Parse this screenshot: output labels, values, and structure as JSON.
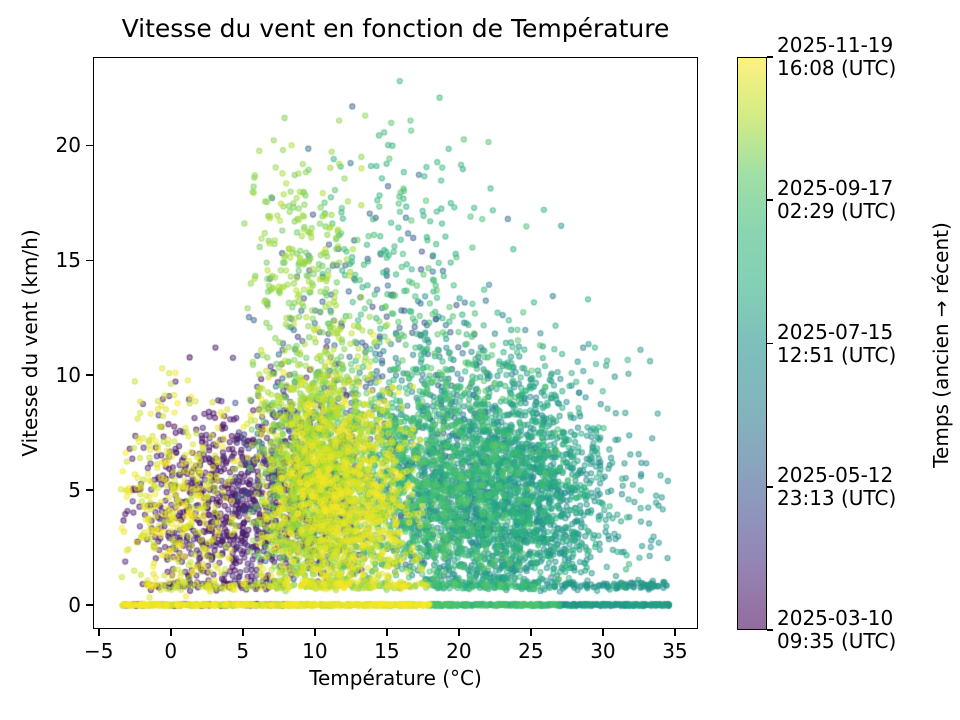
{
  "chart_data": {
    "type": "scatter",
    "title": "Vitesse du vent en fonction de Température",
    "xlabel": "Température (°C)",
    "ylabel": "Vitesse du vent (km/h)",
    "xlim": [
      -5.4,
      36.6
    ],
    "ylim": [
      -1.05,
      23.85
    ],
    "grid": false,
    "xticks": {
      "values": [
        -5,
        0,
        5,
        10,
        15,
        20,
        25,
        30,
        35
      ],
      "labels": [
        "−5",
        "0",
        "5",
        "10",
        "15",
        "20",
        "25",
        "30",
        "35"
      ]
    },
    "yticks": {
      "values": [
        0,
        5,
        10,
        15,
        20
      ],
      "labels": [
        "0",
        "5",
        "10",
        "15",
        "20"
      ]
    },
    "colormap": "viridis",
    "marker": {
      "radius_px": 2.55,
      "fill_alpha": 0.45,
      "edge_alpha": 0.6,
      "edge_width": 1.1
    },
    "colorbar": {
      "label": "Temps (ancien → récent)",
      "position": "right",
      "ticks": [
        {
          "frac": 1.0,
          "lines": [
            "2025-11-19",
            "16:08 (UTC)"
          ]
        },
        {
          "frac": 0.75,
          "lines": [
            "2025-09-17",
            "02:29 (UTC)"
          ]
        },
        {
          "frac": 0.5,
          "lines": [
            "2025-07-15",
            "12:51 (UTC)"
          ]
        },
        {
          "frac": 0.25,
          "lines": [
            "2025-05-12",
            "23:13 (UTC)"
          ]
        },
        {
          "frac": 0.0,
          "lines": [
            "2025-03-10",
            "09:35 (UTC)"
          ]
        }
      ]
    },
    "viridis_anchors": [
      [
        0.0,
        "#440154"
      ],
      [
        0.1,
        "#482878"
      ],
      [
        0.2,
        "#3e4989"
      ],
      [
        0.3,
        "#31688e"
      ],
      [
        0.4,
        "#26828e"
      ],
      [
        0.5,
        "#21918c"
      ],
      [
        0.6,
        "#28ae80"
      ],
      [
        0.7,
        "#35b779"
      ],
      [
        0.8,
        "#5ec962"
      ],
      [
        0.9,
        "#b5de2b"
      ],
      [
        1.0,
        "#fde725"
      ]
    ],
    "points_spec": {
      "seed": 11,
      "temp_range_c": [
        -3.5,
        34.6
      ],
      "wind_range_kmh": [
        0,
        23.2
      ],
      "clusters": [
        {
          "n": 650,
          "t": [
            3.2,
            2.9,
            -3.5,
            9
          ],
          "w": [
            4.2,
            2.1,
            0.6,
            11.5
          ],
          "c": [
            0.0,
            0.1
          ]
        },
        {
          "n": 520,
          "t": [
            9.2,
            2.4,
            4,
            14
          ],
          "w": [
            4.5,
            2.6,
            0.8,
            16
          ],
          "c": [
            0.04,
            0.17
          ]
        },
        {
          "n": 330,
          "t": [
            13,
            4.2,
            4,
            22
          ],
          "w": [
            7.5,
            4.6,
            1,
            21.5
          ],
          "c": [
            0.2,
            0.32
          ]
        },
        {
          "n": 750,
          "t": [
            20,
            3.3,
            13,
            29
          ],
          "w": [
            5,
            2.9,
            0.7,
            14
          ],
          "c": [
            0.33,
            0.46
          ]
        },
        {
          "n": 950,
          "t": [
            25,
            3.6,
            17,
            34.6
          ],
          "w": [
            4.4,
            2.7,
            0.6,
            15
          ],
          "c": [
            0.44,
            0.56
          ]
        },
        {
          "n": 950,
          "t": [
            23,
            3.6,
            15,
            32
          ],
          "w": [
            5,
            3,
            0.7,
            16
          ],
          "c": [
            0.55,
            0.68
          ]
        },
        {
          "n": 1000,
          "t": [
            18,
            3.6,
            10,
            28
          ],
          "w": [
            5.5,
            3.3,
            0.7,
            18
          ],
          "c": [
            0.66,
            0.8
          ]
        },
        {
          "n": 140,
          "t": [
            16,
            3.6,
            9,
            25
          ],
          "w": [
            15.5,
            2.8,
            12,
            22.8
          ],
          "c": [
            0.6,
            0.78
          ]
        },
        {
          "n": 1350,
          "t": [
            10,
            2.3,
            5.5,
            16
          ],
          "w": [
            5.5,
            3.3,
            0.8,
            17
          ],
          "c": [
            0.8,
            0.92
          ]
        },
        {
          "n": 190,
          "t": [
            8.8,
            2.1,
            5,
            13.5
          ],
          "w": [
            15,
            2.6,
            12,
            21.3
          ],
          "c": [
            0.8,
            0.9
          ]
        },
        {
          "n": 1050,
          "t": [
            12,
            2.9,
            6,
            17.5
          ],
          "w": [
            4.4,
            2.4,
            0.8,
            12
          ],
          "c": [
            0.9,
            1.0
          ]
        },
        {
          "n": 360,
          "t": [
            0.6,
            2.3,
            -3.5,
            6
          ],
          "w": [
            4,
            2.5,
            0.3,
            10.5
          ],
          "c": [
            0.9,
            1.0
          ]
        }
      ],
      "bands": [
        {
          "n": 1400,
          "t_range": [
            -3.4,
            34.6
          ],
          "w": [
            0,
            0.025,
            -0.05,
            0.05
          ],
          "c_rules": [
            {
              "t_max": 8,
              "choices": [
                {
                  "p": 0.72,
                  "c": [
                    0.88,
                    1.0
                  ]
                },
                {
                  "p": 0.28,
                  "c": [
                    0.0,
                    0.12
                  ]
                }
              ]
            },
            {
              "t_max": 18,
              "choices": [
                {
                  "p": 1,
                  "c": [
                    0.84,
                    1.0
                  ]
                }
              ]
            },
            {
              "t_max": 27,
              "choices": [
                {
                  "p": 1,
                  "c": [
                    0.55,
                    0.78
                  ]
                }
              ]
            },
            {
              "t_max": 99,
              "choices": [
                {
                  "p": 1,
                  "c": [
                    0.42,
                    0.56
                  ]
                }
              ]
            }
          ]
        },
        {
          "n": 450,
          "t_range": [
            -2,
            34.5
          ],
          "w": [
            0.85,
            0.09,
            0.55,
            1.15
          ],
          "c_rules": [
            {
              "t_max": 7,
              "choices": [
                {
                  "p": 0.5,
                  "c": [
                    0.86,
                    1.0
                  ]
                },
                {
                  "p": 0.5,
                  "c": [
                    0.0,
                    0.14
                  ]
                }
              ]
            },
            {
              "t_max": 18,
              "choices": [
                {
                  "p": 1,
                  "c": [
                    0.8,
                    1.0
                  ]
                }
              ]
            },
            {
              "t_max": 26,
              "choices": [
                {
                  "p": 1,
                  "c": [
                    0.55,
                    0.78
                  ]
                }
              ]
            },
            {
              "t_max": 99,
              "choices": [
                {
                  "p": 1,
                  "c": [
                    0.4,
                    0.56
                  ]
                }
              ]
            }
          ]
        }
      ],
      "notable_points": [
        {
          "t": 15.9,
          "w": 22.8,
          "c": 0.7
        },
        {
          "t": 12.6,
          "w": 21.7,
          "c": 0.27
        },
        {
          "t": 13.5,
          "w": 21.3,
          "c": 0.85
        },
        {
          "t": 7.9,
          "w": 21.2,
          "c": 0.83
        },
        {
          "t": 5.8,
          "w": 18.6,
          "c": 0.84
        },
        {
          "t": 27.1,
          "w": 16.5,
          "c": 0.5
        },
        {
          "t": 25.9,
          "w": 17.2,
          "c": 0.62
        },
        {
          "t": 23.4,
          "w": 16.8,
          "c": 0.3
        },
        {
          "t": 3.1,
          "w": 11.2,
          "c": 0.04
        },
        {
          "t": -0.6,
          "w": 10.3,
          "c": 0.96
        }
      ]
    }
  }
}
